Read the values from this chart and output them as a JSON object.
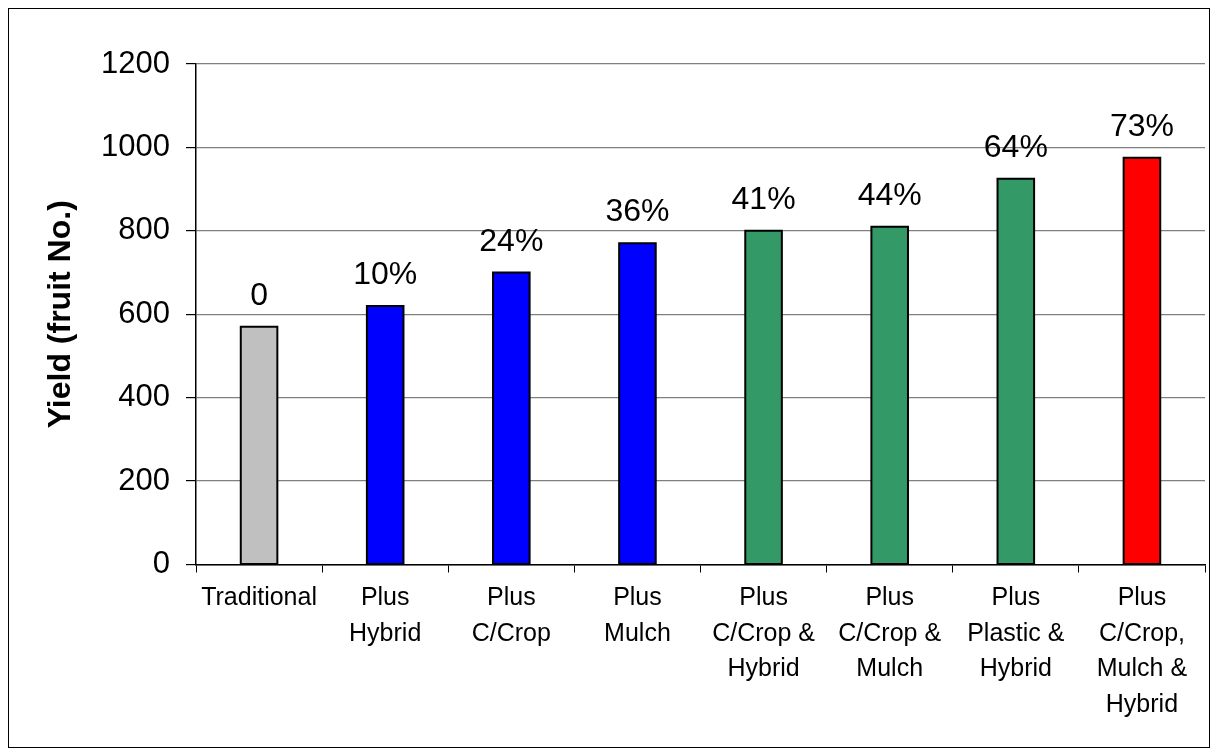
{
  "chart_data": {
    "type": "bar",
    "ylabel": "Yield (fruit No.)",
    "categories": [
      "Traditional",
      "Plus Hybrid",
      "Plus C/Crop",
      "Plus Mulch",
      "Plus C/Crop & Hybrid",
      "Plus C/Crop & Mulch",
      "Plus Plastic & Hybrid",
      "Plus C/Crop, Mulch & Hybrid"
    ],
    "values": [
      570,
      620,
      700,
      770,
      800,
      810,
      925,
      975
    ],
    "colors": [
      "#c0c0c0",
      "#0000ff",
      "#0000ff",
      "#0000ff",
      "#339966",
      "#339966",
      "#339966",
      "#ff0000"
    ],
    "annotations": [
      {
        "text": "0",
        "x": "Traditional",
        "y": 570
      },
      {
        "text": "10%",
        "x": "Plus Hybrid",
        "y": 620
      },
      {
        "text": "24%",
        "x": "Plus C/Crop",
        "y": 700
      },
      {
        "text": "36%",
        "x": "Plus Mulch",
        "y": 770
      },
      {
        "text": "41%",
        "x": "Plus C/Crop & Hybrid",
        "y": 800
      },
      {
        "text": "44%",
        "x": "Plus C/Crop & Mulch",
        "y": 810
      },
      {
        "text": "64%",
        "x": "Plus Plastic & Hybrid",
        "y": 925
      },
      {
        "text": "73%",
        "x": "Plus C/Crop, Mulch & Hybrid",
        "y": 975
      }
    ],
    "ylim": [
      0,
      1200
    ],
    "yticks": [
      0,
      200,
      400,
      600,
      800,
      1000,
      1200
    ],
    "grid": "y"
  }
}
